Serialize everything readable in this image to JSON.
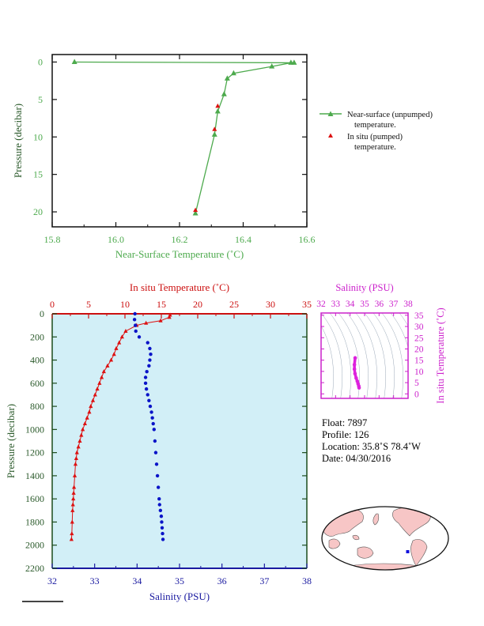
{
  "top_chart": {
    "xlabel": "Near-Surface Temperature (˚C)",
    "ylabel": "Pressure (decibar)",
    "x_ticks": [
      "15.8",
      "16.0",
      "16.2",
      "16.4",
      "16.6"
    ],
    "y_ticks": [
      "0",
      "5",
      "10",
      "15",
      "20"
    ],
    "legend": {
      "near_surface_line1": "Near-surface (unpumped)",
      "near_surface_line2": "temperature.",
      "in_situ_line1": "In situ (pumped)",
      "in_situ_line2": "temperature."
    }
  },
  "main_chart": {
    "top_xlabel": "In situ Temperature (˚C)",
    "bottom_xlabel": "Salinity (PSU)",
    "ylabel": "Pressure (decibar)",
    "temp_ticks": [
      "0",
      "5",
      "10",
      "15",
      "20",
      "25",
      "30",
      "35"
    ],
    "sal_ticks": [
      "32",
      "33",
      "34",
      "35",
      "36",
      "37",
      "38"
    ],
    "p_ticks": [
      "0",
      "200",
      "400",
      "600",
      "800",
      "1000",
      "1200",
      "1400",
      "1600",
      "1800",
      "2000",
      "2200"
    ]
  },
  "ts_chart": {
    "xlabel": "Salinity (PSU)",
    "ylabel": "In situ Temperature (˚C)",
    "x_ticks": [
      "32",
      "33",
      "34",
      "35",
      "36",
      "37",
      "38"
    ],
    "y_ticks": [
      "0",
      "5",
      "10",
      "15",
      "20",
      "25",
      "30",
      "35"
    ]
  },
  "info": {
    "float": "Float:  7897",
    "profile": "Profile:  126",
    "location": "Location:  35.8˚S  78.4˚W",
    "date": "Date:  04/30/2016"
  },
  "colors": {
    "green": "#4daa4d",
    "red": "#dd1111",
    "blue": "#0a14c8",
    "magenta": "#dd22dd",
    "panel_bg": "#d2eff7"
  },
  "chart_data": [
    {
      "type": "line",
      "xlabel": "Near-Surface Temperature (˚C)",
      "ylabel": "Pressure (decibar)",
      "xlim": [
        15.8,
        16.6
      ],
      "ylim": [
        22,
        -1
      ],
      "series": [
        {
          "name": "Near-surface (unpumped) temperature.",
          "x": [
            16.25,
            16.31,
            16.32,
            16.34,
            16.35,
            16.37,
            16.49,
            16.55,
            16.56,
            15.87
          ],
          "y": [
            20.2,
            9.7,
            6.6,
            4.3,
            2.2,
            1.5,
            0.6,
            0.1,
            0.1,
            0.0
          ]
        },
        {
          "name": "In situ (pumped) temperature.",
          "x": [
            16.25,
            16.31,
            16.32
          ],
          "y": [
            19.8,
            9.0,
            5.9
          ]
        }
      ]
    },
    {
      "type": "scatter",
      "ylabel": "Pressure (decibar)",
      "ylim": [
        2200,
        0
      ],
      "series": [
        {
          "name": "In situ Temperature (˚C)",
          "x": [
            16.2,
            16.1,
            14.9,
            12.9,
            11.6,
            10.1,
            9.6,
            9.2,
            8.8,
            8.5,
            8.1,
            7.6,
            7.1,
            6.8,
            6.5,
            6.2,
            5.9,
            5.6,
            5.3,
            5.1,
            4.8,
            4.5,
            4.2,
            4.0,
            3.8,
            3.6,
            3.4,
            3.3,
            3.2,
            3.1,
            3.0,
            2.95,
            2.9,
            2.85,
            2.8,
            2.75,
            2.7,
            2.65
          ],
          "y": [
            10,
            30,
            60,
            80,
            100,
            150,
            200,
            250,
            300,
            350,
            400,
            450,
            500,
            550,
            600,
            650,
            700,
            750,
            800,
            850,
            900,
            950,
            1000,
            1050,
            1100,
            1150,
            1200,
            1250,
            1300,
            1400,
            1500,
            1550,
            1600,
            1650,
            1700,
            1800,
            1900,
            1950
          ]
        },
        {
          "name": "Salinity (PSU)",
          "x": [
            33.95,
            33.94,
            33.96,
            33.97,
            34.05,
            34.25,
            34.3,
            34.32,
            34.3,
            34.28,
            34.23,
            34.2,
            34.2,
            34.22,
            34.25,
            34.28,
            34.31,
            34.34,
            34.36,
            34.38,
            34.4,
            34.42,
            34.44,
            34.46,
            34.48,
            34.5,
            34.52,
            34.53,
            34.55,
            34.57,
            34.58,
            34.59,
            34.6,
            34.61
          ],
          "y": [
            0,
            50,
            100,
            150,
            200,
            250,
            300,
            350,
            400,
            450,
            500,
            550,
            600,
            650,
            700,
            750,
            800,
            850,
            900,
            950,
            1000,
            1100,
            1200,
            1300,
            1400,
            1500,
            1600,
            1650,
            1700,
            1750,
            1800,
            1850,
            1900,
            1950
          ]
        }
      ],
      "x_axes": [
        {
          "label": "In situ Temperature (˚C)",
          "position": "top",
          "range": [
            0,
            35
          ]
        },
        {
          "label": "Salinity (PSU)",
          "position": "bottom",
          "range": [
            32,
            38
          ]
        }
      ]
    },
    {
      "type": "scatter",
      "xlabel": "Salinity (PSU)",
      "ylabel": "In situ Temperature (˚C)",
      "xlim": [
        32,
        38
      ],
      "ylim": [
        -2,
        36
      ],
      "series": [
        {
          "x": [
            34.35,
            34.3,
            34.3,
            34.34,
            34.42,
            34.5,
            34.55,
            34.6,
            34.62
          ],
          "y": [
            16.0,
            13.0,
            11.0,
            9.0,
            7.0,
            5.6,
            4.5,
            3.5,
            2.7
          ]
        }
      ]
    }
  ]
}
